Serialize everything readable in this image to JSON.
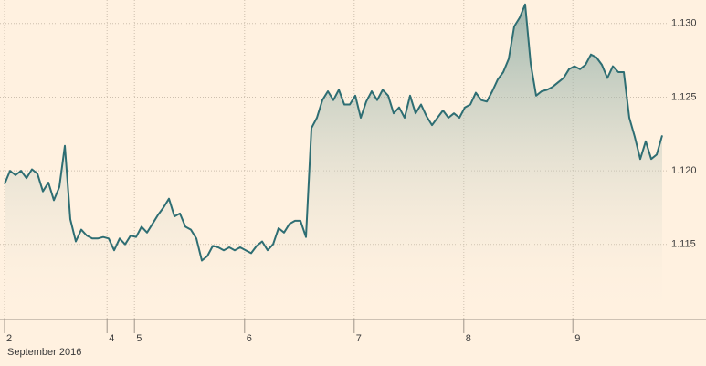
{
  "chart_data": {
    "type": "area",
    "xlabel": "September 2016",
    "x": [
      0,
      1,
      2,
      3,
      4,
      5,
      6,
      7,
      8,
      9,
      10,
      11,
      12,
      13,
      14,
      15,
      16,
      17,
      18,
      19,
      20,
      21,
      22,
      23,
      24,
      25,
      26,
      27,
      28,
      29,
      30,
      31,
      32,
      33,
      34,
      35,
      36,
      37,
      38,
      39,
      40,
      41,
      42,
      43,
      44,
      45,
      46,
      47,
      48,
      49,
      50,
      51,
      52,
      53,
      54,
      55,
      56,
      57,
      58,
      59,
      60,
      61,
      62,
      63,
      64,
      65,
      66,
      67,
      68,
      69,
      70,
      71,
      72,
      73,
      74,
      75,
      76,
      77,
      78,
      79,
      80,
      81,
      82,
      83,
      84,
      85,
      86,
      87,
      88,
      89,
      90,
      91,
      92,
      93,
      94,
      95,
      96,
      97,
      98,
      99,
      100,
      101,
      102,
      103,
      104,
      105,
      106,
      107,
      108,
      109,
      110,
      111,
      112,
      113,
      114,
      115,
      116,
      117,
      118,
      119,
      120
    ],
    "series": [
      {
        "color": "#2e6e73",
        "values": [
          1.1191,
          1.12,
          1.1197,
          1.12,
          1.1195,
          1.1201,
          1.1198,
          1.1186,
          1.1192,
          1.118,
          1.1189,
          1.1217,
          1.1167,
          1.1152,
          1.116,
          1.1156,
          1.1154,
          1.1154,
          1.1155,
          1.1154,
          1.1146,
          1.1154,
          1.115,
          1.1156,
          1.1155,
          1.1162,
          1.1158,
          1.1164,
          1.117,
          1.1175,
          1.1181,
          1.1169,
          1.1171,
          1.1162,
          1.116,
          1.1154,
          1.1139,
          1.1142,
          1.1149,
          1.1148,
          1.1146,
          1.1148,
          1.1146,
          1.1148,
          1.1146,
          1.1144,
          1.1149,
          1.1152,
          1.1146,
          1.115,
          1.1161,
          1.1158,
          1.1164,
          1.1166,
          1.1166,
          1.1155,
          1.1229,
          1.1236,
          1.1248,
          1.1254,
          1.1248,
          1.1255,
          1.1245,
          1.1245,
          1.1251,
          1.1236,
          1.1247,
          1.1254,
          1.1248,
          1.1255,
          1.1251,
          1.1239,
          1.1243,
          1.1236,
          1.1251,
          1.1239,
          1.1245,
          1.1237,
          1.1231,
          1.1236,
          1.1241,
          1.1236,
          1.1239,
          1.1236,
          1.1243,
          1.1245,
          1.1253,
          1.1248,
          1.1247,
          1.1254,
          1.1262,
          1.1267,
          1.1276,
          1.1298,
          1.1304,
          1.1313,
          1.1273,
          1.1251,
          1.1254,
          1.1255,
          1.1257,
          1.126,
          1.1263,
          1.1269,
          1.1271,
          1.1269,
          1.1272,
          1.1279,
          1.1277,
          1.1272,
          1.1263,
          1.1271,
          1.1267,
          1.1267,
          1.1236,
          1.1223,
          1.1208,
          1.122,
          1.1208,
          1.1211,
          1.1224
        ]
      }
    ],
    "xlim": [
      0,
      120
    ],
    "xticks": [
      {
        "value": 0,
        "label": "2"
      },
      {
        "value": 18.7,
        "label": "4"
      },
      {
        "value": 23.7,
        "label": "5"
      },
      {
        "value": 43.8,
        "label": "6"
      },
      {
        "value": 63.8,
        "label": "7"
      },
      {
        "value": 83.8,
        "label": "8"
      },
      {
        "value": 103.7,
        "label": "9"
      }
    ],
    "ylim": [
      1.1099,
      1.1316
    ],
    "yticks": [
      {
        "value": 1.115,
        "label": "1.115"
      },
      {
        "value": 1.12,
        "label": "1.120"
      },
      {
        "value": 1.125,
        "label": "1.125"
      },
      {
        "value": 1.13,
        "label": "1.130"
      }
    ],
    "grid": true
  }
}
